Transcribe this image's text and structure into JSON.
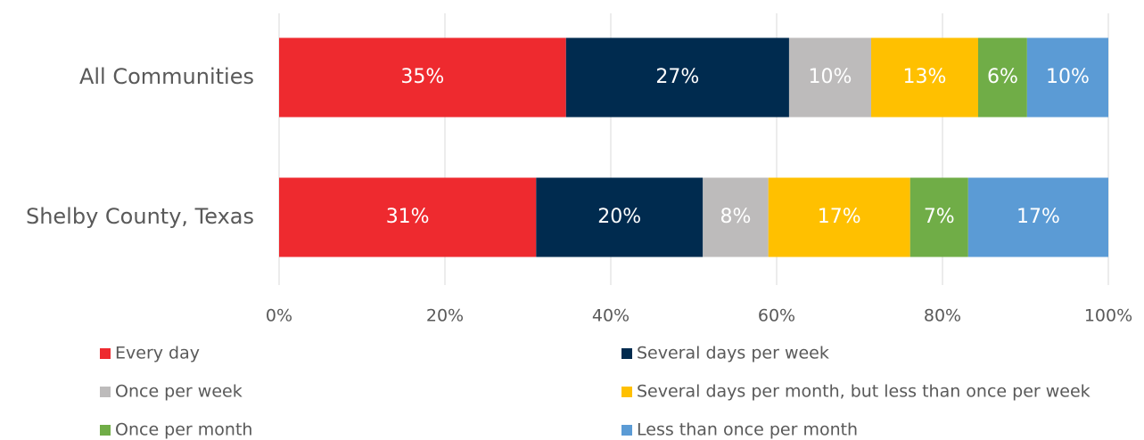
{
  "chart_data": {
    "type": "stacked_bar_horizontal",
    "categories": [
      "All Communities",
      "Shelby County, Texas"
    ],
    "series": [
      {
        "name": "Every day",
        "color": "#ee2a2f",
        "values": [
          34.6,
          31.0
        ],
        "value_labels": [
          "35%",
          "31%"
        ]
      },
      {
        "name": "Several days per week",
        "color": "#002b4f",
        "values": [
          26.9,
          20.1
        ],
        "value_labels": [
          "27%",
          "20%"
        ]
      },
      {
        "name": "Once per week",
        "color": "#bdbbbb",
        "values": [
          9.9,
          7.9
        ],
        "value_labels": [
          "10%",
          "8%"
        ]
      },
      {
        "name": "Several days per month, but less than once per week",
        "color": "#ffc000",
        "values": [
          12.9,
          17.1
        ],
        "value_labels": [
          "13%",
          "17%"
        ]
      },
      {
        "name": "Once per month",
        "color": "#70ad47",
        "values": [
          5.9,
          7.0
        ],
        "value_labels": [
          "6%",
          "7%"
        ]
      },
      {
        "name": "Less than once per month",
        "color": "#5b9bd5",
        "values": [
          9.8,
          16.9
        ],
        "value_labels": [
          "10%",
          "17%"
        ]
      }
    ],
    "xlim": [
      0,
      100
    ],
    "xticks": [
      {
        "value": 0,
        "label": "0%"
      },
      {
        "value": 20,
        "label": "20%"
      },
      {
        "value": 40,
        "label": "40%"
      },
      {
        "value": 60,
        "label": "60%"
      },
      {
        "value": 80,
        "label": "80%"
      },
      {
        "value": 100,
        "label": "100%"
      }
    ],
    "grid": true,
    "legend": "bottom"
  }
}
